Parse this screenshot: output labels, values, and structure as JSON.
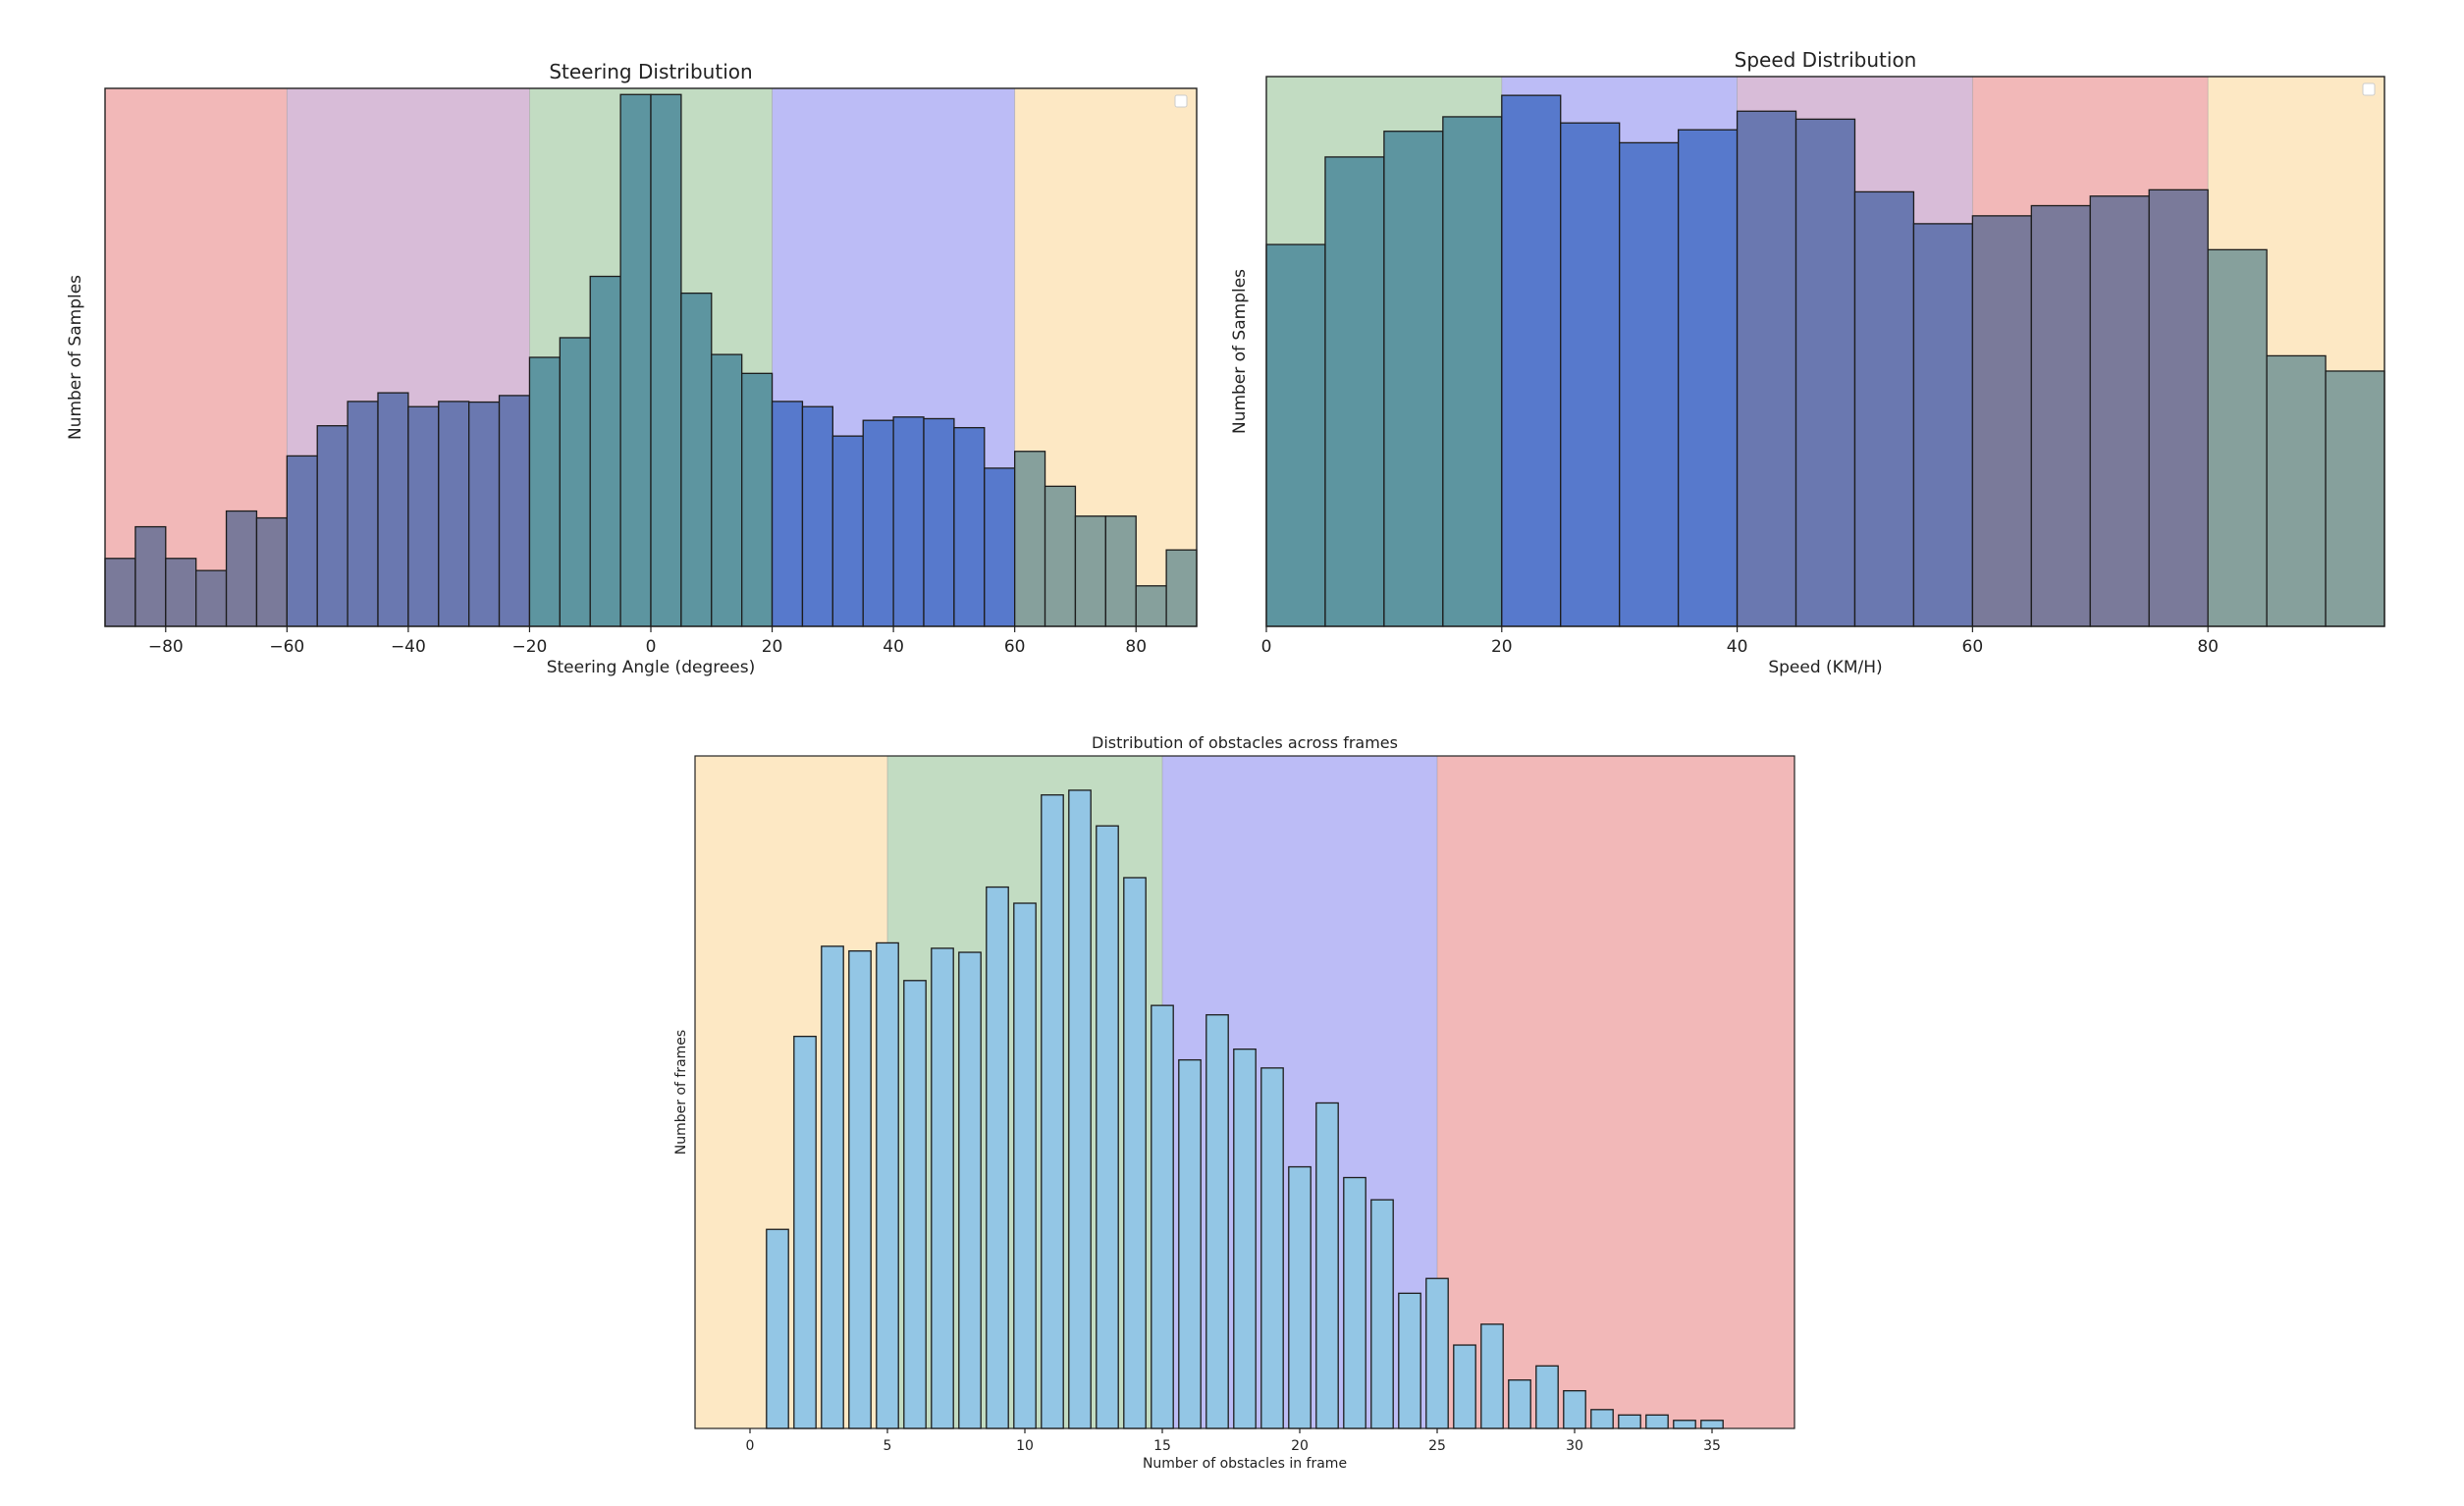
{
  "chart_data": [
    {
      "id": "steering",
      "type": "bar",
      "title": "Steering Distribution",
      "xlabel": "Steering Angle (degrees)",
      "ylabel": "Number of Samples",
      "yscale": "log",
      "xlim": [
        -90,
        90
      ],
      "ylim": [
        10,
        100000
      ],
      "legend": "top-right (empty)",
      "xticks": [
        -80,
        -60,
        -40,
        -20,
        0,
        20,
        40,
        60,
        80
      ],
      "tick_labels": [
        "−80",
        "−60",
        "−40",
        "−20",
        "0",
        "20",
        "40",
        "60",
        "80"
      ],
      "bin_width": 5,
      "bin_starts": [
        -90,
        -85,
        -80,
        -75,
        -70,
        -65,
        -60,
        -55,
        -50,
        -45,
        -40,
        -35,
        -30,
        -25,
        -20,
        -15,
        -10,
        -5,
        0,
        5,
        10,
        15,
        20,
        25,
        30,
        35,
        40,
        45,
        50,
        55,
        60,
        65,
        70,
        75,
        80,
        85
      ],
      "values": [
        32,
        55,
        32,
        26,
        72,
        64,
        185,
        310,
        470,
        545,
        430,
        470,
        465,
        520,
        1000,
        1400,
        4000,
        90000,
        90000,
        3000,
        1050,
        760,
        470,
        430,
        260,
        340,
        360,
        350,
        300,
        150,
        200,
        110,
        66,
        66,
        20,
        37
      ],
      "regions": [
        {
          "from": -90,
          "to": -60,
          "color": "#f2b8b8"
        },
        {
          "from": -60,
          "to": -20,
          "color": "#d8bcd8"
        },
        {
          "from": -20,
          "to": 20,
          "color": "#c2dcc2"
        },
        {
          "from": 20,
          "to": 60,
          "color": "#bcbcf6"
        },
        {
          "from": 60,
          "to": 90,
          "color": "#fde8c4"
        }
      ],
      "bar_colors": [
        {
          "from": -90,
          "to": -60,
          "color": "#7a7a9a"
        },
        {
          "from": -60,
          "to": -20,
          "color": "#6a78b0"
        },
        {
          "from": -20,
          "to": 20,
          "color": "#5d95a0"
        },
        {
          "from": 20,
          "to": 60,
          "color": "#5779cc"
        },
        {
          "from": 60,
          "to": 90,
          "color": "#86a09c"
        }
      ]
    },
    {
      "id": "speed",
      "type": "bar",
      "title": "Speed Distribution",
      "xlabel": "Speed (KM/H)",
      "ylabel": "Number of Samples",
      "yscale": "log",
      "xlim": [
        0,
        95
      ],
      "ylim": [
        10,
        100000
      ],
      "legend": "top-right (empty)",
      "xticks": [
        0,
        20,
        40,
        60,
        80
      ],
      "tick_labels": [
        "0",
        "20",
        "40",
        "60",
        "80"
      ],
      "bin_width": 5,
      "bin_starts": [
        0,
        5,
        10,
        15,
        20,
        25,
        30,
        35,
        40,
        45,
        50,
        55,
        60,
        65,
        70,
        75,
        80,
        85,
        90
      ],
      "values": [
        6000,
        26000,
        40000,
        51000,
        73000,
        46000,
        33000,
        41000,
        56000,
        49000,
        14500,
        8500,
        9700,
        11500,
        13500,
        15000,
        5500,
        930,
        720
      ],
      "regions": [
        {
          "from": 0,
          "to": 20,
          "color": "#c2dcc2"
        },
        {
          "from": 20,
          "to": 40,
          "color": "#bcbcf6"
        },
        {
          "from": 40,
          "to": 60,
          "color": "#d8bcd8"
        },
        {
          "from": 60,
          "to": 80,
          "color": "#f2b8b8"
        },
        {
          "from": 80,
          "to": 95,
          "color": "#fde8c4"
        }
      ],
      "bar_colors": [
        {
          "from": 0,
          "to": 20,
          "color": "#5d95a0"
        },
        {
          "from": 20,
          "to": 40,
          "color": "#5779cc"
        },
        {
          "from": 40,
          "to": 60,
          "color": "#6a78b0"
        },
        {
          "from": 60,
          "to": 80,
          "color": "#7a7a9a"
        },
        {
          "from": 80,
          "to": 95,
          "color": "#86a09c"
        }
      ]
    },
    {
      "id": "obstacles",
      "type": "bar",
      "title": "Distribution of obstacles across frames",
      "xlabel": "Number of obstacles in frame",
      "ylabel": "Number of frames",
      "yscale": "linear",
      "xlim": [
        -2,
        38
      ],
      "ylim": [
        0,
        100
      ],
      "legend": "none",
      "xticks": [
        0,
        5,
        10,
        15,
        20,
        25,
        30,
        35
      ],
      "tick_labels": [
        "0",
        "5",
        "10",
        "15",
        "20",
        "25",
        "30",
        "35"
      ],
      "categories": [
        1,
        2,
        3,
        4,
        5,
        6,
        7,
        8,
        9,
        10,
        11,
        12,
        13,
        14,
        15,
        16,
        17,
        18,
        19,
        20,
        21,
        22,
        23,
        24,
        25,
        26,
        27,
        28,
        29,
        30,
        31,
        32,
        33,
        34,
        35
      ],
      "values": [
        29.6,
        58.3,
        71.7,
        71.0,
        72.2,
        66.6,
        71.4,
        70.8,
        80.5,
        78.1,
        94.2,
        94.9,
        89.6,
        81.9,
        62.9,
        54.8,
        61.5,
        56.4,
        53.6,
        38.9,
        48.4,
        37.3,
        34.0,
        20.1,
        22.3,
        12.4,
        15.5,
        7.2,
        9.3,
        5.6,
        2.8,
        2.0,
        2.0,
        1.2,
        1.2
      ],
      "bar_color": "#93c6e5",
      "regions": [
        {
          "from": -2,
          "to": 5,
          "color": "#fde8c4"
        },
        {
          "from": 5,
          "to": 15,
          "color": "#c2dcc2"
        },
        {
          "from": 15,
          "to": 25,
          "color": "#bcbcf6"
        },
        {
          "from": 25,
          "to": 38,
          "color": "#f2b8b8"
        }
      ]
    }
  ]
}
